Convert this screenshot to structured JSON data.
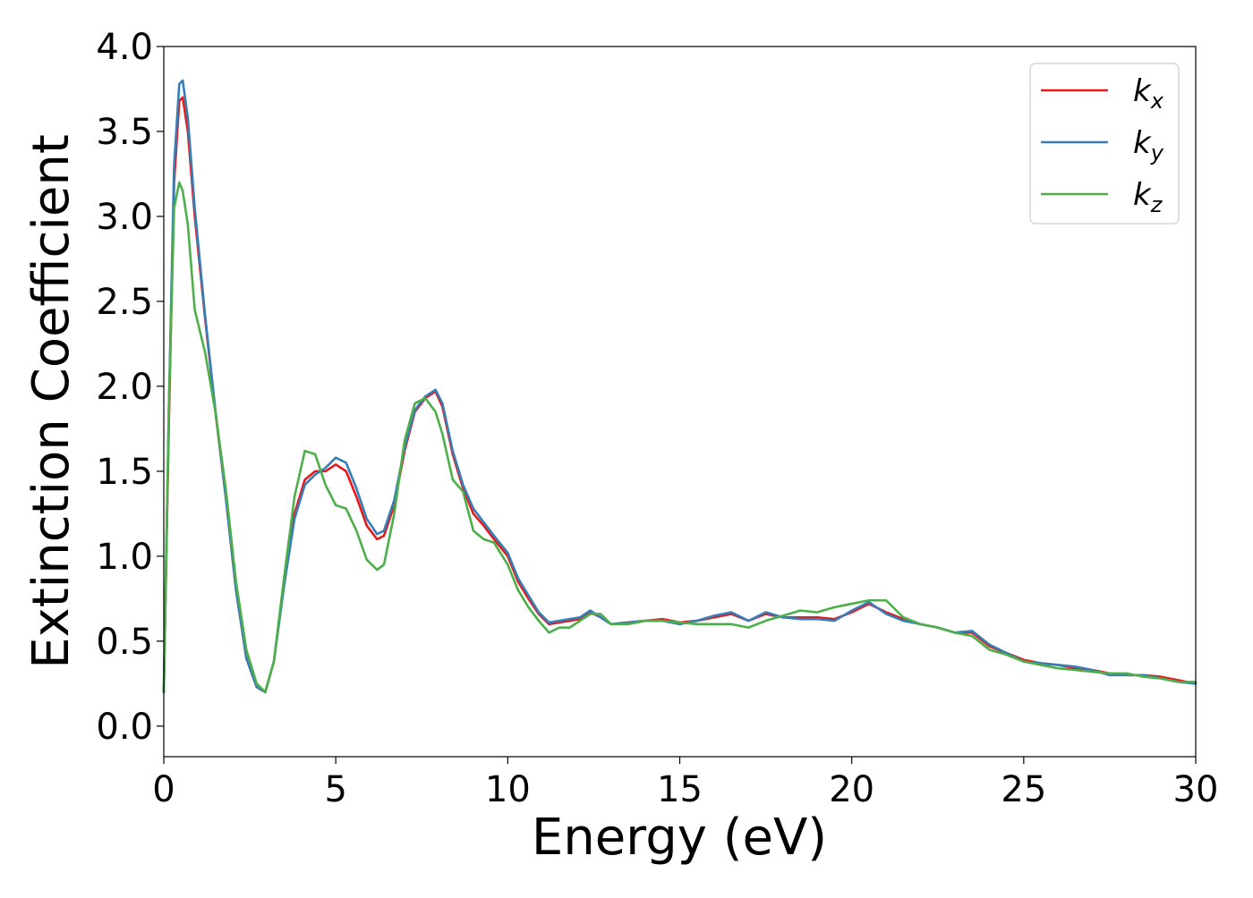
{
  "chart_data": {
    "type": "line",
    "xlabel": "Energy (eV)",
    "ylabel": "Extinction Coefficient",
    "xlim": [
      0,
      30
    ],
    "ylim": [
      -0.18,
      4.0
    ],
    "x_ticks": [
      "0",
      "5",
      "10",
      "15",
      "20",
      "25",
      "30"
    ],
    "y_ticks": [
      "0.0",
      "0.5",
      "1.0",
      "1.5",
      "2.0",
      "2.5",
      "3.0",
      "3.5",
      "4.0"
    ],
    "grid": false,
    "legend_position": "top-right",
    "series": [
      {
        "name": "k_x",
        "label_main": "k",
        "label_sub": "x",
        "color": "#e41a1c",
        "x": [
          0,
          0.15,
          0.3,
          0.45,
          0.55,
          0.7,
          0.9,
          1.2,
          1.5,
          1.8,
          2.1,
          2.4,
          2.7,
          2.95,
          3.2,
          3.5,
          3.8,
          4.1,
          4.4,
          4.7,
          5.0,
          5.3,
          5.6,
          5.9,
          6.2,
          6.4,
          6.7,
          7.0,
          7.3,
          7.6,
          7.9,
          8.1,
          8.4,
          8.7,
          9.0,
          9.3,
          9.6,
          10.0,
          10.3,
          10.6,
          10.9,
          11.2,
          11.5,
          11.8,
          12.1,
          12.4,
          12.7,
          13.0,
          13.5,
          14.0,
          14.5,
          15.0,
          15.5,
          16.0,
          16.5,
          17.0,
          17.5,
          18.0,
          18.5,
          19.0,
          19.5,
          20.0,
          20.5,
          21.0,
          21.5,
          22.0,
          22.5,
          23.0,
          23.5,
          24.0,
          24.5,
          25.0,
          25.5,
          26.0,
          26.5,
          27.0,
          27.5,
          28.0,
          28.5,
          29.0,
          29.5,
          30.0
        ],
        "values": [
          0.2,
          1.8,
          3.2,
          3.68,
          3.7,
          3.5,
          3.0,
          2.4,
          1.85,
          1.35,
          0.8,
          0.4,
          0.23,
          0.2,
          0.38,
          0.85,
          1.25,
          1.45,
          1.5,
          1.5,
          1.54,
          1.5,
          1.35,
          1.18,
          1.1,
          1.12,
          1.3,
          1.62,
          1.85,
          1.93,
          1.97,
          1.88,
          1.6,
          1.4,
          1.25,
          1.18,
          1.1,
          1.0,
          0.85,
          0.75,
          0.66,
          0.6,
          0.61,
          0.62,
          0.63,
          0.67,
          0.64,
          0.6,
          0.61,
          0.62,
          0.63,
          0.61,
          0.62,
          0.64,
          0.66,
          0.62,
          0.66,
          0.64,
          0.64,
          0.64,
          0.63,
          0.67,
          0.72,
          0.67,
          0.63,
          0.6,
          0.58,
          0.55,
          0.55,
          0.47,
          0.43,
          0.39,
          0.37,
          0.36,
          0.34,
          0.33,
          0.31,
          0.3,
          0.3,
          0.29,
          0.27,
          0.25
        ]
      },
      {
        "name": "k_y",
        "label_main": "k",
        "label_sub": "y",
        "color": "#377eb8",
        "x": [
          0,
          0.15,
          0.3,
          0.45,
          0.55,
          0.7,
          0.9,
          1.2,
          1.5,
          1.8,
          2.1,
          2.4,
          2.7,
          2.95,
          3.2,
          3.5,
          3.8,
          4.1,
          4.4,
          4.7,
          5.0,
          5.3,
          5.6,
          5.9,
          6.2,
          6.4,
          6.7,
          7.0,
          7.3,
          7.6,
          7.9,
          8.1,
          8.4,
          8.7,
          9.0,
          9.3,
          9.6,
          10.0,
          10.3,
          10.6,
          10.9,
          11.2,
          11.5,
          11.8,
          12.1,
          12.4,
          12.7,
          13.0,
          13.5,
          14.0,
          14.5,
          15.0,
          15.5,
          16.0,
          16.5,
          17.0,
          17.5,
          18.0,
          18.5,
          19.0,
          19.5,
          20.0,
          20.5,
          21.0,
          21.5,
          22.0,
          22.5,
          23.0,
          23.5,
          24.0,
          24.5,
          25.0,
          25.5,
          26.0,
          26.5,
          27.0,
          27.5,
          28.0,
          28.5,
          29.0,
          29.5,
          30.0
        ],
        "values": [
          0.2,
          1.9,
          3.3,
          3.78,
          3.8,
          3.58,
          3.05,
          2.42,
          1.86,
          1.35,
          0.8,
          0.4,
          0.23,
          0.2,
          0.38,
          0.83,
          1.22,
          1.42,
          1.48,
          1.52,
          1.58,
          1.55,
          1.4,
          1.22,
          1.13,
          1.15,
          1.33,
          1.64,
          1.86,
          1.94,
          1.98,
          1.9,
          1.62,
          1.42,
          1.28,
          1.2,
          1.12,
          1.02,
          0.87,
          0.77,
          0.67,
          0.61,
          0.62,
          0.63,
          0.64,
          0.68,
          0.64,
          0.6,
          0.61,
          0.62,
          0.62,
          0.6,
          0.62,
          0.65,
          0.67,
          0.62,
          0.67,
          0.64,
          0.63,
          0.63,
          0.62,
          0.68,
          0.73,
          0.66,
          0.62,
          0.6,
          0.58,
          0.55,
          0.56,
          0.48,
          0.43,
          0.38,
          0.37,
          0.36,
          0.35,
          0.33,
          0.3,
          0.3,
          0.3,
          0.28,
          0.26,
          0.25
        ]
      },
      {
        "name": "k_z",
        "label_main": "k",
        "label_sub": "z",
        "color": "#4daf4a",
        "x": [
          0,
          0.15,
          0.3,
          0.45,
          0.55,
          0.7,
          0.9,
          1.2,
          1.5,
          1.8,
          2.1,
          2.4,
          2.7,
          2.95,
          3.2,
          3.5,
          3.8,
          4.1,
          4.4,
          4.7,
          5.0,
          5.3,
          5.6,
          5.9,
          6.2,
          6.4,
          6.7,
          7.0,
          7.3,
          7.6,
          7.9,
          8.1,
          8.4,
          8.7,
          9.0,
          9.3,
          9.6,
          10.0,
          10.3,
          10.6,
          10.9,
          11.2,
          11.5,
          11.8,
          12.1,
          12.4,
          12.7,
          13.0,
          13.5,
          14.0,
          14.5,
          15.0,
          15.5,
          16.0,
          16.5,
          17.0,
          17.5,
          18.0,
          18.5,
          19.0,
          19.5,
          20.0,
          20.5,
          21.0,
          21.5,
          22.0,
          22.5,
          23.0,
          23.5,
          24.0,
          24.5,
          25.0,
          25.5,
          26.0,
          26.5,
          27.0,
          27.5,
          28.0,
          28.5,
          29.0,
          29.5,
          30.0
        ],
        "values": [
          0.2,
          1.9,
          3.05,
          3.2,
          3.15,
          2.95,
          2.45,
          2.2,
          1.85,
          1.4,
          0.85,
          0.45,
          0.25,
          0.2,
          0.38,
          0.88,
          1.35,
          1.62,
          1.6,
          1.42,
          1.3,
          1.28,
          1.15,
          0.98,
          0.92,
          0.95,
          1.25,
          1.68,
          1.9,
          1.93,
          1.85,
          1.72,
          1.45,
          1.38,
          1.15,
          1.1,
          1.08,
          0.95,
          0.8,
          0.7,
          0.62,
          0.55,
          0.58,
          0.58,
          0.62,
          0.66,
          0.66,
          0.6,
          0.6,
          0.62,
          0.62,
          0.61,
          0.6,
          0.6,
          0.6,
          0.58,
          0.62,
          0.65,
          0.68,
          0.67,
          0.7,
          0.72,
          0.74,
          0.74,
          0.64,
          0.6,
          0.58,
          0.55,
          0.53,
          0.45,
          0.42,
          0.38,
          0.36,
          0.34,
          0.33,
          0.32,
          0.31,
          0.31,
          0.29,
          0.28,
          0.26,
          0.26
        ]
      }
    ]
  }
}
